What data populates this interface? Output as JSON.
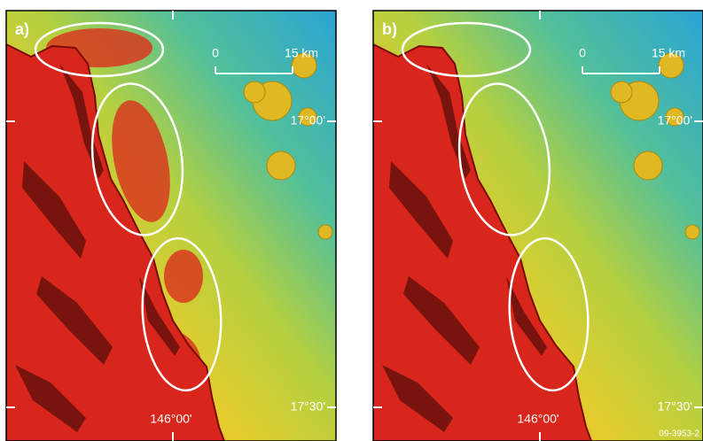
{
  "panels": [
    {
      "label": "a)",
      "scale": {
        "start": "0",
        "end": "15 km"
      },
      "latitude_labels": [
        "17°00'",
        "17°30'"
      ],
      "longitude_label": "146°00'"
    },
    {
      "label": "b)",
      "scale": {
        "start": "0",
        "end": "15 km"
      },
      "latitude_labels": [
        "17°00'",
        "17°30'"
      ],
      "longitude_label": "146°00'"
    }
  ],
  "figure_id": "09-3953-2"
}
